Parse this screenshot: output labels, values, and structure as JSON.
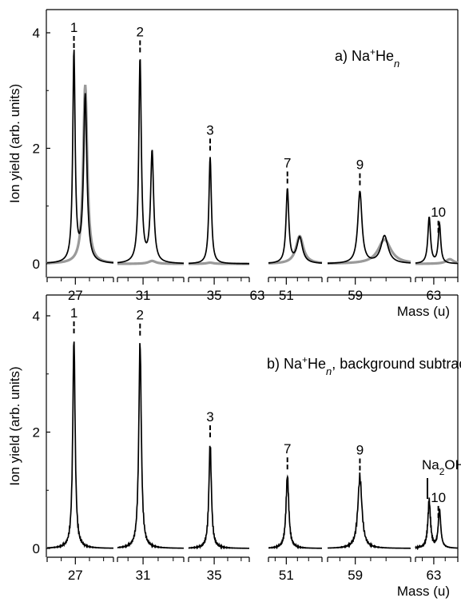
{
  "chart_data": [
    {
      "type": "line",
      "title": "a) Na⁺Heₙ",
      "title_parts": {
        "prefix": "a) Na",
        "sup": "+",
        "mid": "He",
        "ital": "n",
        "suffix": ""
      },
      "ylabel": "Ion yield (arb. units)",
      "xlabel": "Mass (u)",
      "ylim": [
        -0.1,
        4.35
      ],
      "yticks": [
        0,
        2,
        4
      ],
      "broken_x_axis": true,
      "segments": [
        {
          "x_range": [
            25.0,
            29.7
          ],
          "tick_labels": [
            "27"
          ],
          "label": "1",
          "label_x": 26.9,
          "black_peaks": [
            [
              26.9,
              3.65,
              0.1
            ],
            [
              27.7,
              2.9,
              0.14
            ]
          ],
          "gray_peaks": [
            [
              27.7,
              3.1,
              0.17
            ]
          ]
        },
        {
          "x_range": [
            29.3,
            33.7
          ],
          "tick_labels": [
            "31"
          ],
          "label": "2",
          "label_x": 30.8,
          "black_peaks": [
            [
              30.8,
              3.55,
              0.1
            ],
            [
              31.6,
              1.93,
              0.12
            ]
          ],
          "gray_peaks": [
            [
              31.6,
              0.05,
              0.3
            ]
          ]
        },
        {
          "x_range": [
            33.1,
            37.6
          ],
          "tick_labels": [
            "35"
          ],
          "label": "3",
          "label_x": 34.7,
          "black_peaks": [
            [
              34.7,
              1.85,
              0.11
            ]
          ],
          "gray_peaks": [
            [
              34.7,
              0.02,
              0.3
            ]
          ]
        },
        {
          "x_range": [
            49.4,
            54.2
          ],
          "tick_labels": [
            "51"
          ],
          "label": "7",
          "label_x": 51.1,
          "black_peaks": [
            [
              51.1,
              1.28,
              0.15
            ],
            [
              52.2,
              0.45,
              0.3
            ]
          ],
          "gray_peaks": [
            [
              52.2,
              0.48,
              0.4
            ]
          ]
        },
        {
          "x_range": [
            57.2,
            62.6
          ],
          "tick_labels": [
            "59"
          ],
          "label": "9",
          "label_x": 59.3,
          "black_peaks": [
            [
              59.3,
              1.25,
              0.16
            ],
            [
              60.9,
              0.48,
              0.28
            ]
          ],
          "gray_peaks": [
            [
              60.9,
              0.42,
              0.5
            ]
          ]
        },
        {
          "x_range": [
            61.4,
            65.1
          ],
          "tick_labels": [
            "63"
          ],
          "label": "10",
          "label_x": 63.4,
          "black_peaks": [
            [
              62.6,
              0.8,
              0.14
            ],
            [
              63.5,
              0.68,
              0.13
            ]
          ],
          "gray_peaks": [
            [
              64.4,
              0.08,
              0.4
            ]
          ]
        }
      ]
    },
    {
      "type": "line",
      "title": "b) Na⁺Heₙ, background subtracted",
      "title_parts": {
        "prefix": "b) Na",
        "sup": "+",
        "mid": "He",
        "ital": "n",
        "suffix": ", background subtracted"
      },
      "ylabel": "Ion yield (arb. units)",
      "xlabel": "Mass (u)",
      "ylim": [
        -0.1,
        4.35
      ],
      "yticks": [
        0,
        2,
        4
      ],
      "broken_x_axis": true,
      "extra_label": {
        "text_main": "Na",
        "sub": "2",
        "text_rest": "OH",
        "sup": "+",
        "near_x": 62.6
      },
      "segments": [
        {
          "x_range": [
            25.0,
            29.7
          ],
          "tick_labels": [
            "27"
          ],
          "label": "1",
          "label_x": 26.9,
          "peaks": [
            [
              26.9,
              3.62,
              0.1
            ]
          ]
        },
        {
          "x_range": [
            29.3,
            33.7
          ],
          "tick_labels": [
            "31"
          ],
          "label": "2",
          "label_x": 30.8,
          "peaks": [
            [
              30.8,
              3.55,
              0.1
            ]
          ]
        },
        {
          "x_range": [
            33.1,
            37.6
          ],
          "tick_labels": [
            "35"
          ],
          "label": "3",
          "label_x": 34.7,
          "peaks": [
            [
              34.7,
              1.8,
              0.11
            ]
          ]
        },
        {
          "x_range": [
            49.4,
            54.2
          ],
          "tick_labels": [
            "51"
          ],
          "label": "7",
          "label_x": 51.1,
          "peaks": [
            [
              51.1,
              1.25,
              0.15
            ]
          ]
        },
        {
          "x_range": [
            57.2,
            62.6
          ],
          "tick_labels": [
            "59"
          ],
          "label": "9",
          "label_x": 59.3,
          "peaks": [
            [
              59.3,
              1.23,
              0.16
            ]
          ]
        },
        {
          "x_range": [
            61.4,
            65.1
          ],
          "tick_labels": [
            "63"
          ],
          "label": "10",
          "label_x": 63.4,
          "peaks": [
            [
              62.6,
              0.8,
              0.14
            ],
            [
              63.5,
              0.66,
              0.13
            ]
          ]
        }
      ]
    }
  ],
  "colors": {
    "black_trace": "#000000",
    "gray_trace": "#9a9a9a"
  },
  "extra_panel_a_tick": "63"
}
